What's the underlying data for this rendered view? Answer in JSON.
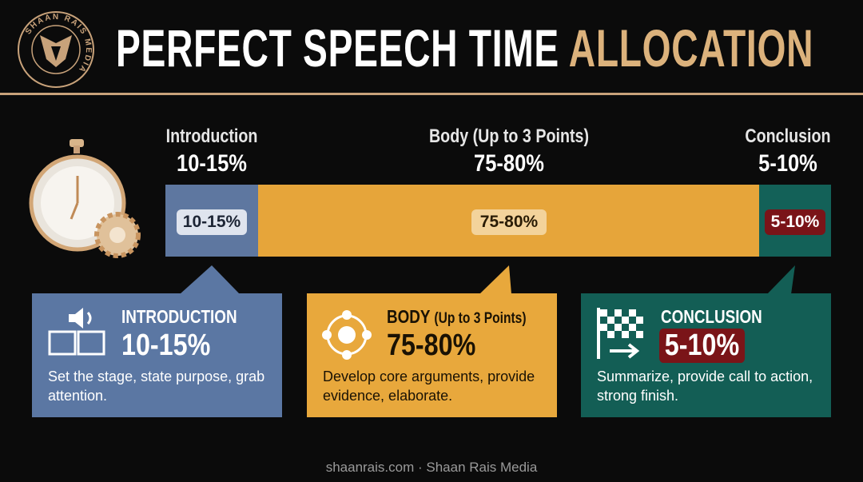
{
  "header": {
    "logo_text": "SHAAN RAIS MEDIA",
    "title": "PERFECT SPEECH TIME",
    "title_accent": "ALLOCATION"
  },
  "timeline": {
    "segments": [
      {
        "label": "Introduction",
        "range": "10-15%"
      },
      {
        "label": "Body (Up to 3 Points)",
        "range": "75-80%"
      },
      {
        "label": "Conclusion",
        "range": "5-10%"
      }
    ]
  },
  "cards": [
    {
      "title": "INTRODUCTION",
      "range": "10-15%",
      "description": "Set the stage, state purpose, grab attention."
    },
    {
      "title": "BODY",
      "subtitle": "(Up to 3 Points)",
      "range": "75-80%",
      "description": "Develop core arguments, provide evidence, elaborate."
    },
    {
      "title": "CONCLUSION",
      "range": "5-10%",
      "description": "Summarize, provide call to action, strong finish."
    }
  ],
  "footer": "shaanrais.com · Shaan Rais Media"
}
